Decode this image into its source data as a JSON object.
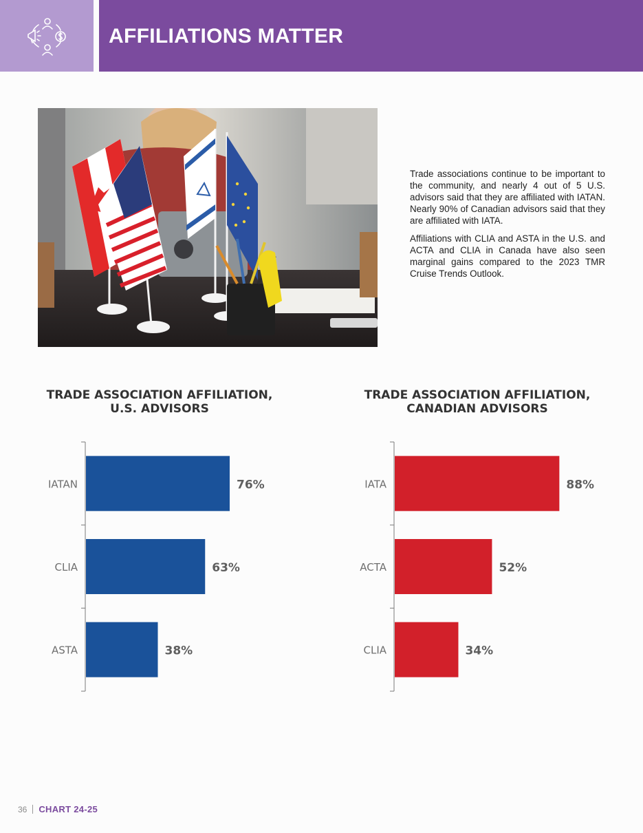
{
  "header": {
    "title": "AFFILIATIONS MATTER",
    "icon": "people-network-icon",
    "colors": {
      "bar": "#7b4b9e",
      "icon_box": "#b39ad0"
    }
  },
  "photo": {
    "subject": "flags-on-desk-photo"
  },
  "intro": {
    "paragraphs": [
      "Trade associations continue to be important to the community, and nearly 4 out of 5 U.S. advisors said that they are affiliated with IATAN. Nearly 90% of Canadian advisors said that they are affiliated with IATA.",
      "Affiliations with CLIA and ASTA in the U.S. and ACTA and CLIA in Canada have also seen marginal gains compared to the 2023 TMR Cruise Trends Outlook."
    ]
  },
  "chart_data": [
    {
      "type": "bar",
      "orientation": "horizontal",
      "title_lines": [
        "TRADE ASSOCIATION AFFILIATION,",
        "U.S. ADVISORS"
      ],
      "categories": [
        "IATAN",
        "CLIA",
        "ASTA"
      ],
      "values": [
        76,
        63,
        38
      ],
      "value_labels": [
        "76%",
        "63%",
        "38%"
      ],
      "xlim": [
        0,
        100
      ],
      "grid": false,
      "color": "#1a529a"
    },
    {
      "type": "bar",
      "orientation": "horizontal",
      "title_lines": [
        "TRADE ASSOCIATION AFFILIATION,",
        "CANADIAN ADVISORS"
      ],
      "categories": [
        "IATA",
        "ACTA",
        "CLIA"
      ],
      "values": [
        88,
        52,
        34
      ],
      "value_labels": [
        "88%",
        "52%",
        "34%"
      ],
      "xlim": [
        0,
        100
      ],
      "grid": false,
      "color": "#d2202a"
    }
  ],
  "footer": {
    "page_number": "36",
    "label": "CHART 24-25"
  }
}
